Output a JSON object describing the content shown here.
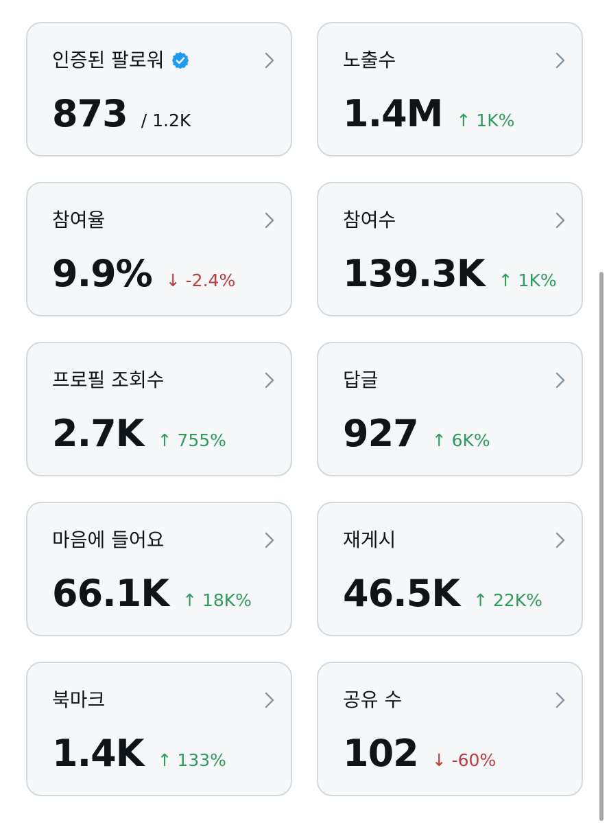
{
  "colors": {
    "card_background": "#f5f7f8",
    "card_border": "#cfd9de",
    "text": "#0f1419",
    "positive": "#2e9b5b",
    "negative": "#c0393b",
    "verified_badge": "#1d9bf0",
    "chevron": "#8a97a3"
  },
  "metrics": {
    "verified_followers": {
      "title": "인증된 팔로워",
      "value": "873",
      "total": "/ 1.2K",
      "icon": "verified-badge-icon"
    },
    "impressions": {
      "title": "노출수",
      "value": "1.4M",
      "change": "↑ 1K%",
      "trend": "up"
    },
    "engagement_rate": {
      "title": "참여율",
      "value": "9.9%",
      "change": "↓ -2.4%",
      "trend": "down"
    },
    "engagements": {
      "title": "참여수",
      "value": "139.3K",
      "change": "↑ 1K%",
      "trend": "up"
    },
    "profile_visits": {
      "title": "프로필 조회수",
      "value": "2.7K",
      "change": "↑ 755%",
      "trend": "up"
    },
    "replies": {
      "title": "답글",
      "value": "927",
      "change": "↑ 6K%",
      "trend": "up"
    },
    "likes": {
      "title": "마음에 들어요",
      "value": "66.1K",
      "change": "↑ 18K%",
      "trend": "up"
    },
    "reposts": {
      "title": "재게시",
      "value": "46.5K",
      "change": "↑ 22K%",
      "trend": "up"
    },
    "bookmarks": {
      "title": "북마크",
      "value": "1.4K",
      "change": "↑ 133%",
      "trend": "up"
    },
    "shares": {
      "title": "공유 수",
      "value": "102",
      "change": "↓ -60%",
      "trend": "down"
    }
  },
  "chevron_icon": "chevron-right-icon"
}
